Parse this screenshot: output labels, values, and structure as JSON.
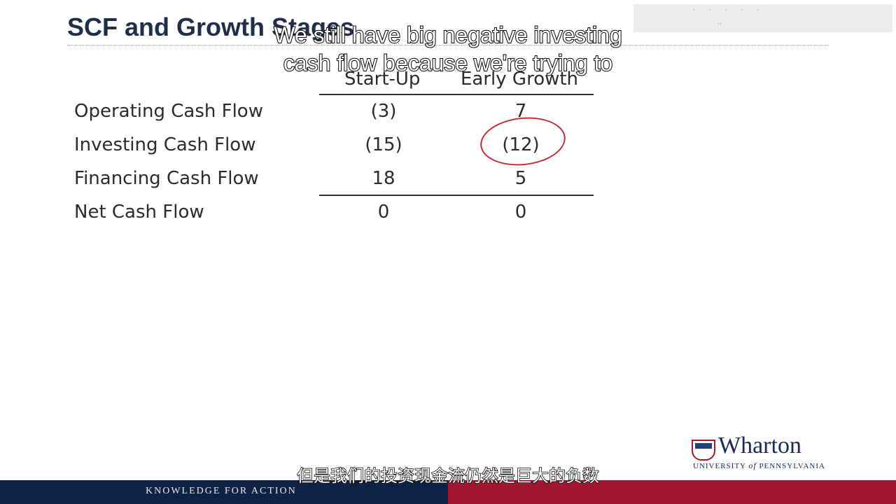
{
  "slide": {
    "title": "SCF and Growth Stages",
    "columns": [
      "Start-Up",
      "Early Growth"
    ],
    "rows": [
      {
        "label": "Operating Cash Flow",
        "start_up": "(3)",
        "early_growth": "7"
      },
      {
        "label": "Investing Cash Flow",
        "start_up": "(15)",
        "early_growth": "(12)"
      },
      {
        "label": "Financing Cash Flow",
        "start_up": "18",
        "early_growth": "5"
      },
      {
        "label": "Net Cash Flow",
        "start_up": "0",
        "early_growth": "0"
      }
    ]
  },
  "subtitles": {
    "english_line1": "We still have big negative investing",
    "english_line2": "cash flow because we're trying to",
    "chinese": "但是我们的投资现金流仍然是巨大的负数"
  },
  "logo": {
    "name": "Wharton",
    "sub_prefix": "UNIVERSITY ",
    "sub_of": "of",
    "sub_suffix": " PENNSYLVANIA"
  },
  "footer": {
    "tagline": "KNOWLEDGE FOR ACTION"
  },
  "colors": {
    "title": "#1f2f4a",
    "footer_blue": "#0e2245",
    "footer_red": "#a0162f",
    "annotation_circle": "#c0303a"
  }
}
